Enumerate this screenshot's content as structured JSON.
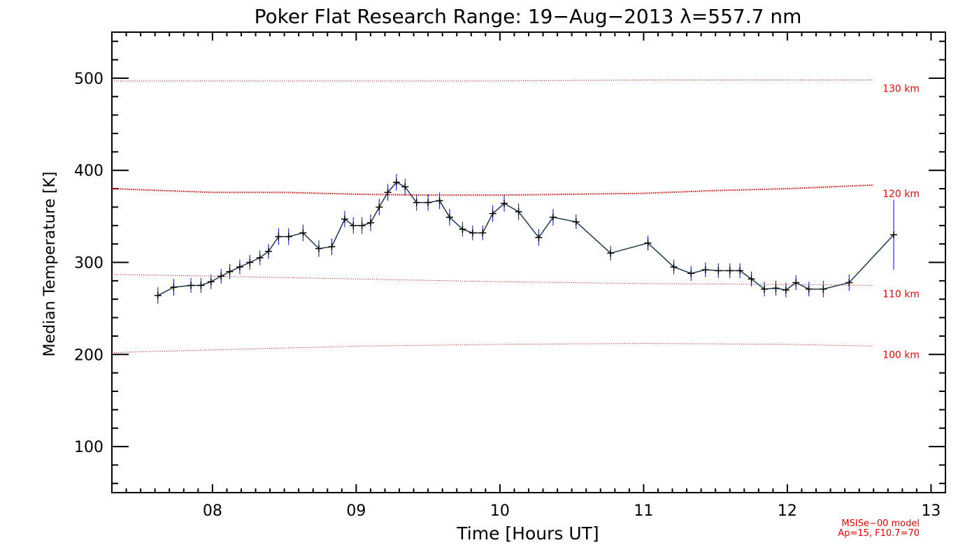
{
  "chart_data": {
    "type": "line",
    "title": "Poker Flat Research Range: 19−Aug−2013 λ=557.7 nm",
    "xlabel": "Time [Hours UT]",
    "ylabel": "Median Temperature [K]",
    "xlim": [
      7.3,
      13.1
    ],
    "ylim": [
      50,
      550
    ],
    "x_ticks": [
      {
        "value": 8,
        "label": "08"
      },
      {
        "value": 9,
        "label": "09"
      },
      {
        "value": 10,
        "label": "10"
      },
      {
        "value": 11,
        "label": "11"
      },
      {
        "value": 12,
        "label": "12"
      },
      {
        "value": 13,
        "label": "13"
      }
    ],
    "y_ticks": [
      {
        "value": 100,
        "label": "100"
      },
      {
        "value": 200,
        "label": "200"
      },
      {
        "value": 300,
        "label": "300"
      },
      {
        "value": 400,
        "label": "400"
      },
      {
        "value": 500,
        "label": "500"
      }
    ],
    "grid": false,
    "colors": {
      "data_line": "#1a3a52",
      "error_bars": "#0000ff",
      "markers": "#000000",
      "model": "#ff0000"
    },
    "series": [
      {
        "x": [
          7.62,
          7.73,
          7.85,
          7.92,
          7.99,
          8.06,
          8.12,
          8.19,
          8.26,
          8.33,
          8.39,
          8.46,
          8.53,
          8.63,
          8.74,
          8.83,
          8.92,
          8.98,
          9.04,
          9.1,
          9.16,
          9.22,
          9.28,
          9.34,
          9.42,
          9.5,
          9.58,
          9.65,
          9.74,
          9.81,
          9.88,
          9.95,
          10.03,
          10.13,
          10.27,
          10.37,
          10.53,
          10.77,
          11.03,
          11.21,
          11.33,
          11.43,
          11.52,
          11.6,
          11.67,
          11.75,
          11.84,
          11.92,
          11.99,
          12.06,
          12.15,
          12.25,
          12.43,
          12.74
        ],
        "values": [
          264,
          273,
          275,
          275,
          279,
          285,
          290,
          295,
          300,
          305,
          312,
          328,
          328,
          332,
          315,
          317,
          347,
          340,
          340,
          343,
          360,
          376,
          387,
          382,
          365,
          365,
          367,
          349,
          336,
          332,
          332,
          353,
          364,
          355,
          327,
          349,
          344,
          310,
          321,
          295,
          288,
          292,
          291,
          291,
          291,
          282,
          271,
          272,
          270,
          278,
          271,
          271,
          278,
          330
        ],
        "errors": [
          9,
          9,
          8,
          8,
          8,
          8,
          8,
          8,
          8,
          8,
          8,
          9,
          9,
          9,
          9,
          9,
          9,
          9,
          9,
          9,
          9,
          9,
          9,
          9,
          9,
          9,
          9,
          9,
          8,
          8,
          8,
          9,
          9,
          9,
          9,
          9,
          8,
          8,
          8,
          8,
          8,
          8,
          8,
          8,
          8,
          8,
          8,
          8,
          8,
          8,
          8,
          9,
          9,
          38
        ]
      }
    ],
    "model_lines": [
      {
        "label": "130 km",
        "x": [
          7.3,
          8.0,
          9.0,
          10.0,
          11.0,
          12.0,
          12.6
        ],
        "values": [
          497,
          497,
          497,
          497,
          498,
          498,
          498
        ]
      },
      {
        "label": "120 km",
        "x": [
          7.3,
          8.0,
          8.5,
          9.0,
          9.5,
          10.0,
          10.5,
          11.0,
          11.5,
          12.0,
          12.6
        ],
        "values": [
          380,
          376,
          376,
          374,
          373,
          373,
          374,
          375,
          378,
          380,
          384
        ]
      },
      {
        "label": "110 km",
        "x": [
          7.3,
          8.0,
          9.0,
          10.0,
          11.0,
          12.0,
          12.6
        ],
        "values": [
          287,
          285,
          282,
          279,
          277,
          276,
          275
        ]
      },
      {
        "label": "100 km",
        "x": [
          7.3,
          8.0,
          9.0,
          10.0,
          11.0,
          12.0,
          12.6
        ],
        "values": [
          202,
          205,
          209,
          211,
          212,
          211,
          209
        ]
      }
    ],
    "annotations": [
      "MSISe−00 model",
      "Ap=15, F10.7=70"
    ]
  }
}
